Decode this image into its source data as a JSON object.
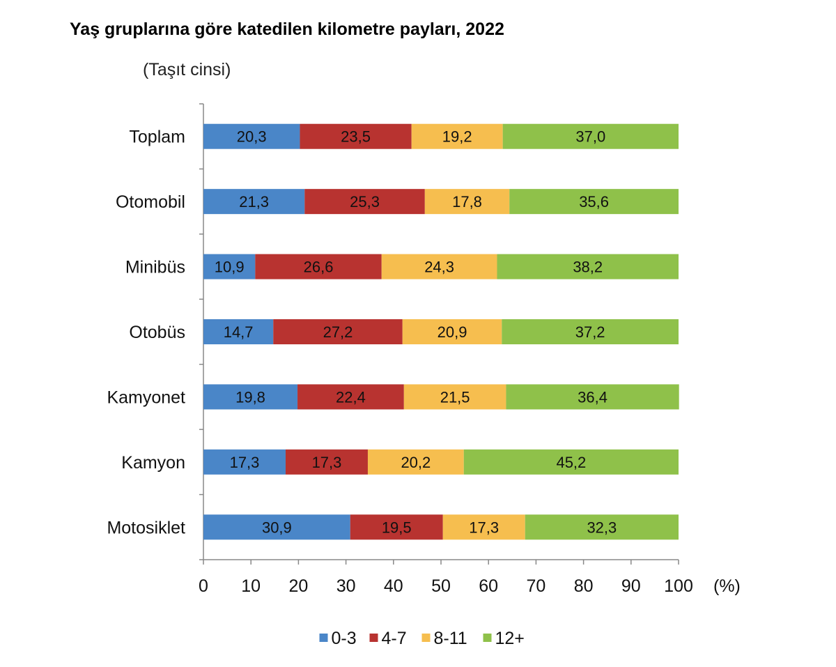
{
  "title": "Yaş gruplarına göre katedilen kilometre payları, 2022",
  "subtitle": "(Taşıt cinsi)",
  "chart_data": {
    "type": "bar",
    "orientation": "horizontal",
    "stacked": true,
    "categories": [
      "Toplam",
      "Otomobil",
      "Minibüs",
      "Otobüs",
      "Kamyonet",
      "Kamyon",
      "Motosiklet"
    ],
    "series": [
      {
        "name": "0-3",
        "color": "#4a86c8",
        "values": [
          20.3,
          21.3,
          10.9,
          14.7,
          19.8,
          17.3,
          30.9
        ]
      },
      {
        "name": "4-7",
        "color": "#b83330",
        "values": [
          23.5,
          25.3,
          26.6,
          27.2,
          22.4,
          17.3,
          19.5
        ]
      },
      {
        "name": "8-11",
        "color": "#f6be4f",
        "values": [
          19.2,
          17.8,
          24.3,
          20.9,
          21.5,
          20.2,
          17.3
        ]
      },
      {
        "name": "12+",
        "color": "#8fc14a",
        "values": [
          37.0,
          35.6,
          38.2,
          37.2,
          36.4,
          45.2,
          32.3
        ]
      }
    ],
    "data_labels": [
      [
        "20,3",
        "23,5",
        "19,2",
        "37,0"
      ],
      [
        "21,3",
        "25,3",
        "17,8",
        "35,6"
      ],
      [
        "10,9",
        "26,6",
        "24,3",
        "38,2"
      ],
      [
        "14,7",
        "27,2",
        "20,9",
        "37,2"
      ],
      [
        "19,8",
        "22,4",
        "21,5",
        "36,4"
      ],
      [
        "17,3",
        "17,3",
        "20,2",
        "45,2"
      ],
      [
        "30,9",
        "19,5",
        "17,3",
        "32,3"
      ]
    ],
    "xlim": [
      0,
      100
    ],
    "xticks": [
      "0",
      "10",
      "20",
      "30",
      "40",
      "50",
      "60",
      "70",
      "80",
      "90",
      "100"
    ],
    "xunit": "(%)",
    "grid": false,
    "legend_position": "bottom"
  }
}
